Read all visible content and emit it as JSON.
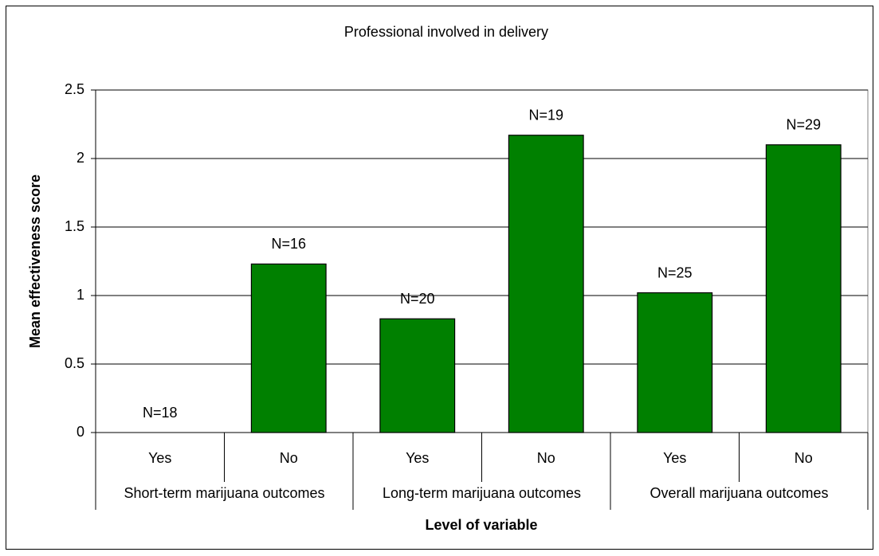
{
  "chart_data": {
    "type": "bar",
    "title": "Professional involved in delivery",
    "xlabel": "Level of variable",
    "ylabel": "Mean effectiveness score",
    "categories": [
      "Yes",
      "No",
      "Yes",
      "No",
      "Yes",
      "No"
    ],
    "groups": [
      "Short-term marijuana outcomes",
      "Long-term marijuana outcomes",
      "Overall marijuana outcomes"
    ],
    "values": [
      0,
      1.23,
      0.83,
      2.17,
      1.02,
      2.1
    ],
    "annotations": [
      "N=18",
      "N=16",
      "N=20",
      "N=19",
      "N=25",
      "N=29"
    ],
    "color": "#008000",
    "ylim": [
      0,
      2.5
    ],
    "yticks": [
      0,
      0.5,
      1,
      1.5,
      2,
      2.5
    ],
    "grid": true
  }
}
